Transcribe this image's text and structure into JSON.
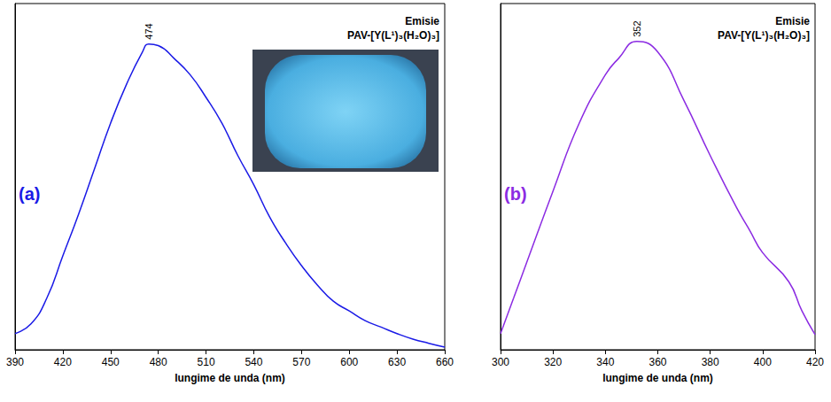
{
  "chart_data": [
    {
      "type": "line",
      "panel_label": "(a)",
      "title": "Emisie",
      "subtitle": "PAV-[Y(L¹)₃(H₂O)₃]",
      "x_label": "lungime de unda (nm)",
      "color": "#1a1ae6",
      "x": [
        390,
        400,
        410,
        420,
        430,
        440,
        450,
        460,
        470,
        474,
        480,
        490,
        500,
        510,
        520,
        530,
        540,
        550,
        560,
        570,
        580,
        590,
        600,
        610,
        620,
        630,
        640,
        650,
        660
      ],
      "values": [
        0.05,
        0.08,
        0.16,
        0.29,
        0.42,
        0.56,
        0.7,
        0.82,
        0.92,
        0.945,
        0.94,
        0.9,
        0.85,
        0.78,
        0.7,
        0.6,
        0.51,
        0.41,
        0.33,
        0.26,
        0.2,
        0.15,
        0.12,
        0.09,
        0.07,
        0.05,
        0.033,
        0.02,
        0.008
      ],
      "xlim": [
        390,
        660
      ],
      "xticks": [
        390,
        420,
        450,
        480,
        510,
        540,
        570,
        600,
        630,
        660
      ],
      "ylim": [
        0,
        1.07
      ],
      "tick_labels": "x",
      "grid": false,
      "annotations": [
        {
          "x": 474,
          "y": 0.945,
          "text": "474"
        }
      ]
    },
    {
      "type": "line",
      "panel_label": "(b)",
      "title": "Emisie",
      "subtitle": "PAV-[Y(L¹)₃(H₂O)₃]",
      "x_label": "lungime de unda (nm)",
      "color": "#8b2be2",
      "x": [
        300,
        305,
        310,
        320,
        330,
        340,
        345,
        352,
        360,
        370,
        380,
        390,
        395,
        400,
        410,
        415,
        420
      ],
      "values": [
        0.05,
        0.16,
        0.27,
        0.49,
        0.7,
        0.85,
        0.9,
        0.953,
        0.92,
        0.77,
        0.6,
        0.44,
        0.37,
        0.3,
        0.21,
        0.12,
        0.047
      ],
      "xlim": [
        300,
        420
      ],
      "xticks": [
        300,
        320,
        340,
        360,
        380,
        400,
        420
      ],
      "ylim": [
        0,
        1.07
      ],
      "tick_labels": "x",
      "grid": false,
      "annotations": [
        {
          "x": 352,
          "y": 0.953,
          "text": "352"
        }
      ]
    }
  ]
}
